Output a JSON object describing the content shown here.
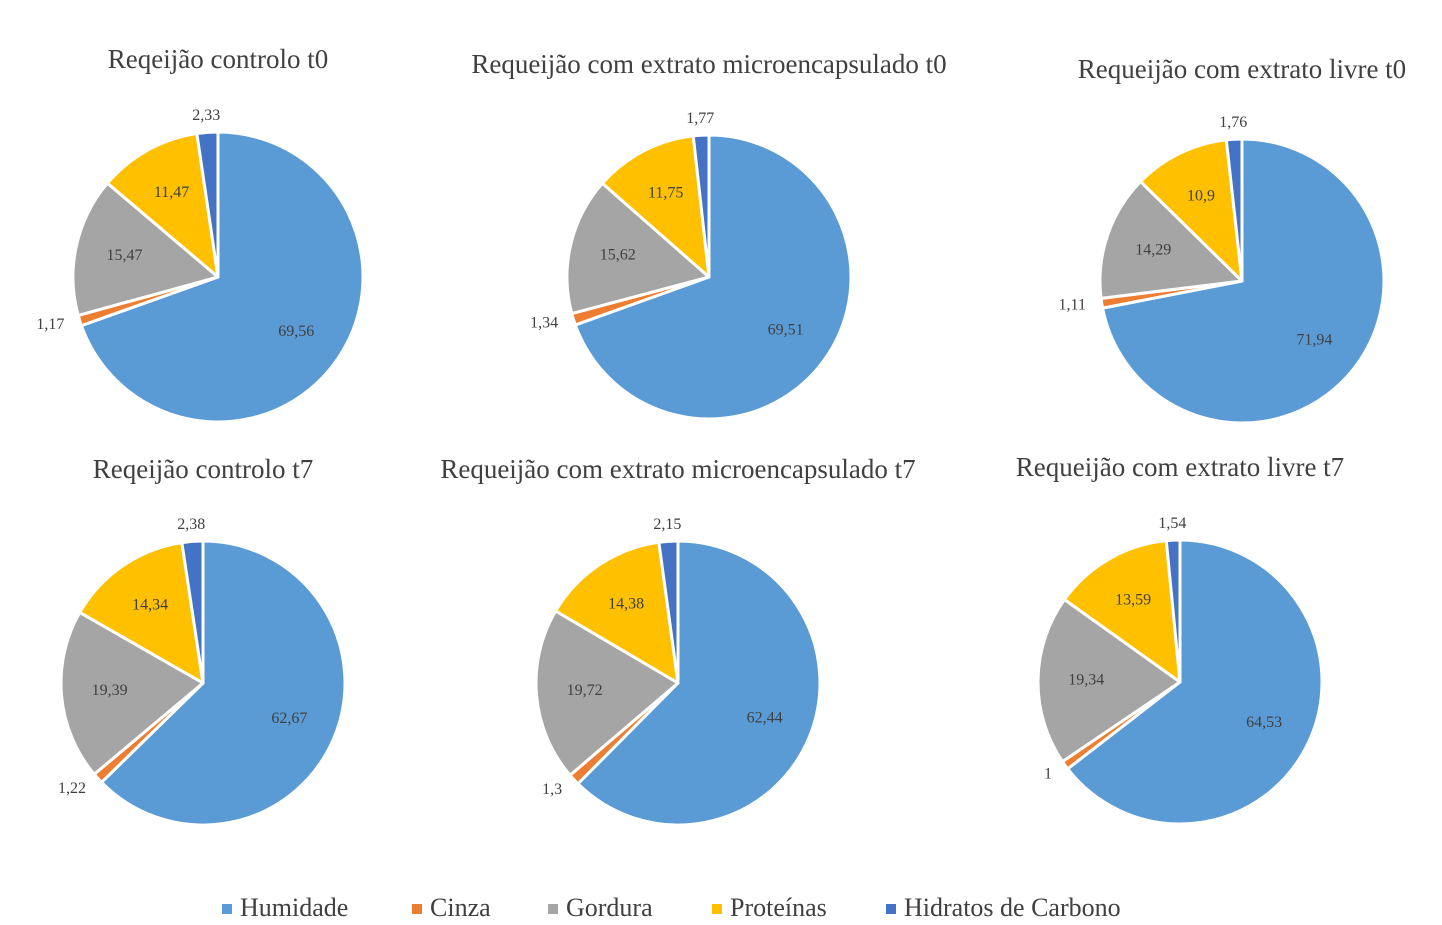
{
  "chart_data": [
    {
      "type": "pie",
      "title": "Reqeijão controlo t0",
      "values": [
        69.56,
        1.17,
        15.47,
        11.47,
        2.33
      ],
      "value_labels": [
        "69,56",
        "1,17",
        "15,47",
        "11,47",
        "2,33"
      ]
    },
    {
      "type": "pie",
      "title": "Requeijão com extrato microencapsulado t0",
      "values": [
        69.51,
        1.34,
        15.62,
        11.75,
        1.77
      ],
      "value_labels": [
        "69,51",
        "1,34",
        "15,62",
        "11,75",
        "1,77"
      ]
    },
    {
      "type": "pie",
      "title": "Requeijão com extrato livre t0",
      "values": [
        71.94,
        1.11,
        14.29,
        10.9,
        1.76
      ],
      "value_labels": [
        "71,94",
        "1,11",
        "14,29",
        "10,9",
        "1,76"
      ]
    },
    {
      "type": "pie",
      "title": "Reqeijão controlo t7",
      "values": [
        62.67,
        1.22,
        19.39,
        14.34,
        2.38
      ],
      "value_labels": [
        "62,67",
        "1,22",
        "19,39",
        "14,34",
        "2,38"
      ]
    },
    {
      "type": "pie",
      "title": "Requeijão com extrato microencapsulado t7",
      "values": [
        62.44,
        1.3,
        19.72,
        14.38,
        2.15
      ],
      "value_labels": [
        "62,44",
        "1,3",
        "19,72",
        "14,38",
        "2,15"
      ]
    },
    {
      "type": "pie",
      "title": "Requeijão com extrato livre t7",
      "values": [
        64.53,
        1,
        19.34,
        13.59,
        1.54
      ],
      "value_labels": [
        "64,53",
        "1",
        "19,34",
        "13,59",
        "1,54"
      ]
    }
  ],
  "legend": {
    "categories": [
      "Humidade",
      "Cinza",
      "Gordura",
      "Proteínas",
      "Hidratos de Carbono"
    ],
    "colors": [
      "#5b9bd5",
      "#ed7d31",
      "#a5a5a5",
      "#ffc000",
      "#4472c4"
    ]
  }
}
